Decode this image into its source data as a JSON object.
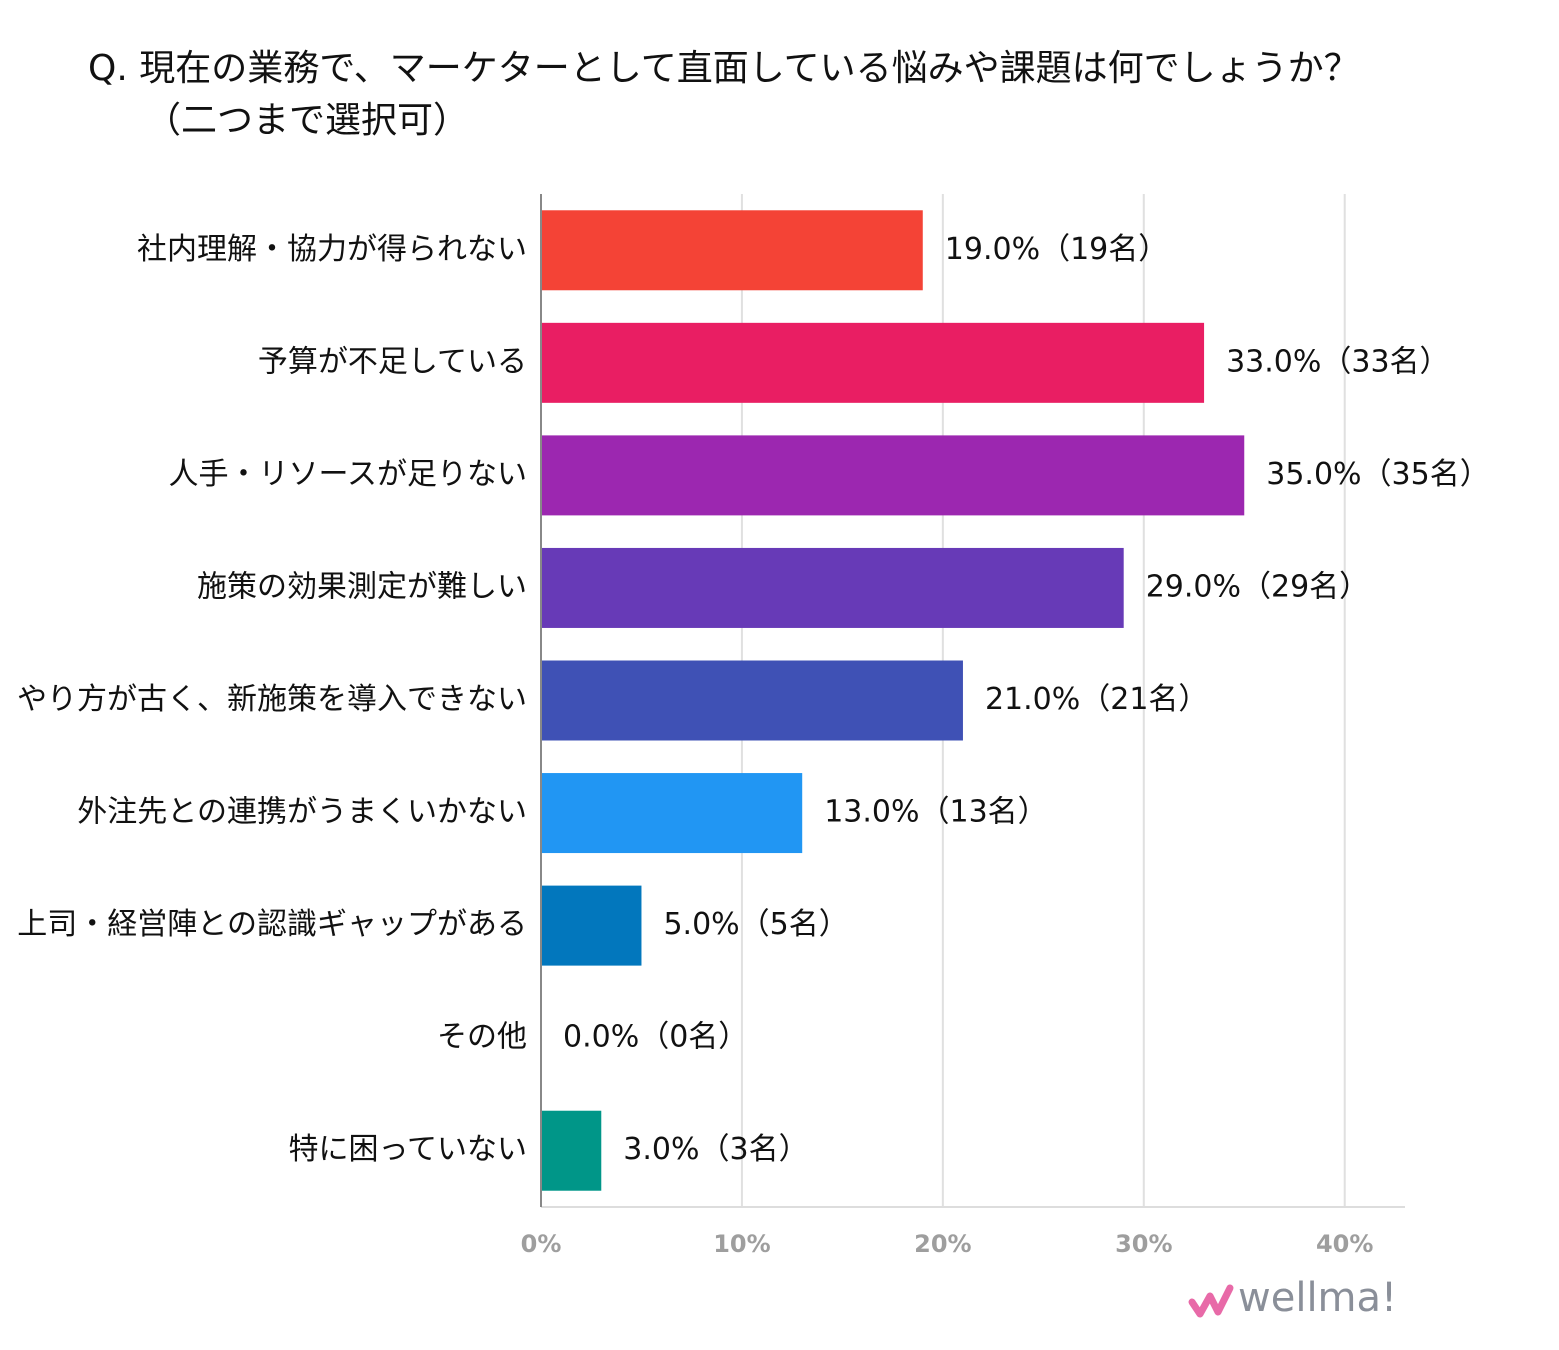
{
  "chart_data": {
    "type": "bar",
    "orientation": "horizontal",
    "title": "Q. 現在の業務で、マーケターとして直面している悩みや課題は何でしょうか？",
    "subtitle": "（二つまで選択可）",
    "categories": [
      "社内理解・協力が得られない",
      "予算が不足している",
      "人手・リソースが足りない",
      "施策の効果測定が難しい",
      "やり方が古く、新施策を導入できない",
      "外注先との連携がうまくいかない",
      "上司・経営陣との認識ギャップがある",
      "その他",
      "特に困っていない"
    ],
    "values": [
      19,
      33,
      35,
      29,
      21,
      13,
      5,
      0,
      3
    ],
    "value_labels": [
      "19.0%（19名）",
      "33.0%（33名）",
      "35.0%（35名）",
      "29.0%（29名）",
      "21.0%（21名）",
      "13.0%（13名）",
      "5.0%（5名）",
      "0.0%（0名）",
      "3.0%（3名）"
    ],
    "colors": [
      "#f44336",
      "#e91e63",
      "#9c27b0",
      "#673ab7",
      "#3f51b5",
      "#2196f3",
      "#0277bd",
      "#9e9e9e",
      "#009688"
    ],
    "xlim": [
      0,
      43
    ],
    "xticks": [
      {
        "value": 0,
        "label": "0%"
      },
      {
        "value": 10,
        "label": "10%"
      },
      {
        "value": 20,
        "label": "20%"
      },
      {
        "value": 30,
        "label": "30%"
      },
      {
        "value": 40,
        "label": "40%"
      }
    ],
    "grid": true,
    "logo": "wellma!"
  }
}
